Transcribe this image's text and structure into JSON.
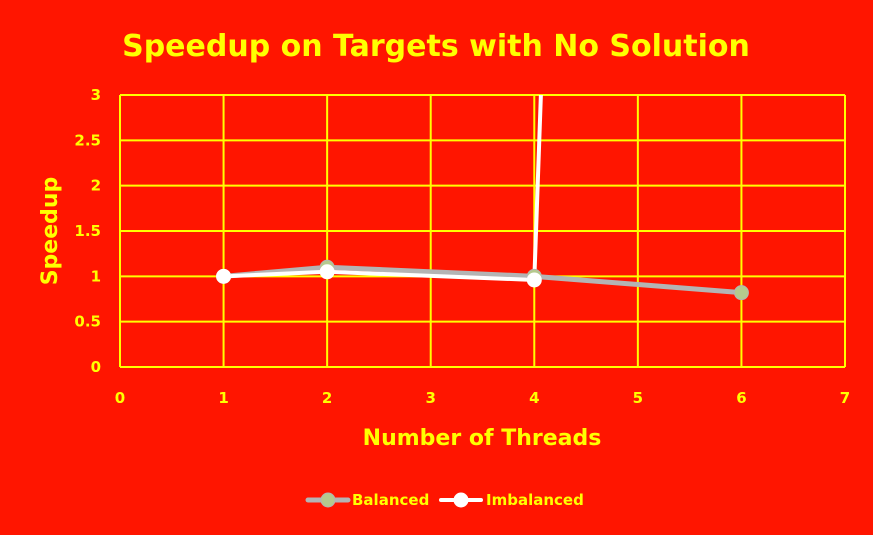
{
  "chart_data": {
    "type": "line",
    "title": "Speedup on Targets with No Solution",
    "xlabel": "Number of Threads",
    "ylabel": "Speedup",
    "xlim": [
      0,
      7
    ],
    "ylim": [
      0,
      3
    ],
    "x_ticks": [
      "0",
      "1",
      "2",
      "3",
      "4",
      "5",
      "6",
      "7"
    ],
    "y_ticks": [
      "0",
      "0.5",
      "1",
      "1.5",
      "2",
      "2.5",
      "3"
    ],
    "grid": true,
    "legend_position": "bottom",
    "colors": {
      "background": "#ff1500",
      "text": "#ffff00",
      "grid": "#ffff00",
      "balanced_line": "#b4b4b4",
      "balanced_marker": "#b5c98e",
      "imbalanced": "#ffffff"
    },
    "series": [
      {
        "name": "Balanced",
        "x": [
          1,
          2,
          4,
          6
        ],
        "y": [
          1.0,
          1.1,
          1.0,
          0.82
        ]
      },
      {
        "name": "Imbalanced",
        "x": [
          1,
          2,
          4,
          4.07
        ],
        "y": [
          1.0,
          1.05,
          0.96,
          3.2
        ]
      }
    ]
  }
}
